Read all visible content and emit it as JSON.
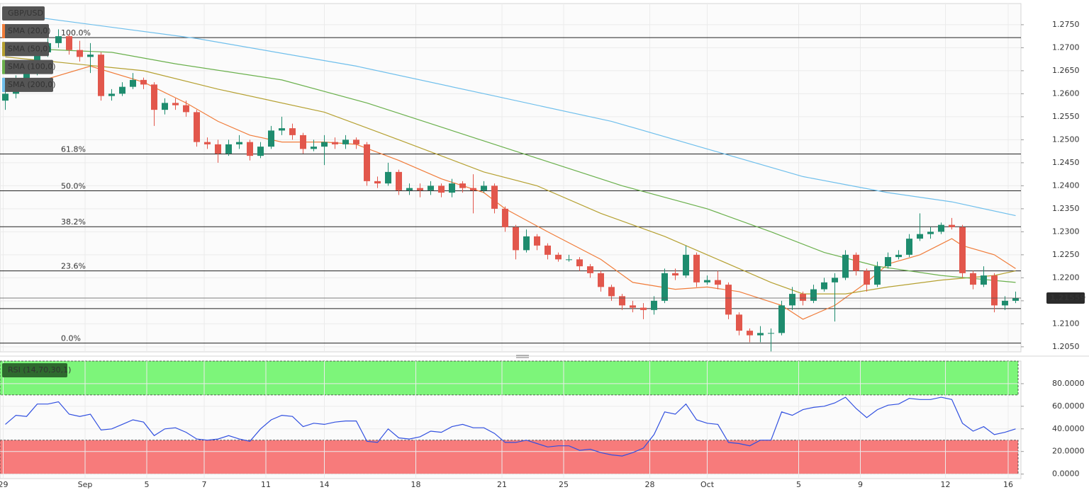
{
  "chart_data": [
    {
      "type": "candlestick",
      "title": "GBP/USD",
      "up_color": "#1e8c6e",
      "down_color": "#e2574c",
      "x": [
        0,
        1,
        2,
        3,
        4,
        5,
        6,
        7,
        8,
        9,
        10,
        11,
        12,
        13,
        14,
        15,
        16,
        17,
        18,
        19,
        20,
        21,
        22,
        23,
        24,
        25,
        26,
        27,
        28,
        29,
        30,
        31,
        32,
        33,
        34,
        35,
        36,
        37,
        38,
        39,
        40,
        41,
        42,
        43,
        44,
        45,
        46,
        47,
        48,
        49,
        50,
        51,
        52,
        53,
        54,
        55,
        56,
        57,
        58,
        59,
        60,
        61,
        62,
        63,
        64,
        65,
        66,
        67,
        68,
        69,
        70,
        71,
        72,
        73,
        74,
        75,
        76,
        77,
        78,
        79,
        80,
        81,
        82,
        83,
        84,
        85,
        86,
        87,
        88,
        89,
        90,
        91,
        92,
        93,
        94,
        95
      ],
      "open": [
        1.2585,
        1.26,
        1.2625,
        1.265,
        1.269,
        1.271,
        1.2725,
        1.2695,
        1.268,
        1.2685,
        1.2595,
        1.26,
        1.2615,
        1.263,
        1.262,
        1.2565,
        1.258,
        1.2575,
        1.256,
        1.2495,
        1.249,
        1.247,
        1.249,
        1.2495,
        1.2465,
        1.2485,
        1.252,
        1.2525,
        1.251,
        1.248,
        1.2485,
        1.2495,
        1.249,
        1.25,
        1.249,
        1.241,
        1.2405,
        1.243,
        1.239,
        1.2395,
        1.239,
        1.24,
        1.2385,
        1.2405,
        1.2395,
        1.239,
        1.24,
        1.235,
        1.231,
        1.226,
        1.229,
        1.227,
        1.225,
        1.224,
        1.224,
        1.2225,
        1.221,
        1.218,
        1.216,
        1.214,
        1.2135,
        1.213,
        1.215,
        1.221,
        1.2205,
        1.225,
        1.219,
        1.2195,
        1.2185,
        1.212,
        1.2085,
        1.2075,
        1.208,
        1.208,
        1.214,
        1.2165,
        1.215,
        1.2175,
        1.219,
        1.22,
        1.225,
        1.2215,
        1.2185,
        1.2225,
        1.2245,
        1.225,
        1.2285,
        1.2295,
        1.23,
        1.2315,
        1.231,
        1.221,
        1.2185,
        1.2205,
        1.214,
        1.215
      ],
      "high": [
        1.2615,
        1.264,
        1.2665,
        1.2705,
        1.272,
        1.274,
        1.273,
        1.2715,
        1.271,
        1.269,
        1.261,
        1.2625,
        1.2645,
        1.2635,
        1.2625,
        1.259,
        1.259,
        1.2585,
        1.2565,
        1.2505,
        1.25,
        1.25,
        1.251,
        1.25,
        1.2495,
        1.253,
        1.255,
        1.2535,
        1.2515,
        1.25,
        1.251,
        1.2505,
        1.251,
        1.2505,
        1.2495,
        1.242,
        1.245,
        1.2435,
        1.2405,
        1.2405,
        1.241,
        1.2405,
        1.2415,
        1.241,
        1.2425,
        1.241,
        1.2405,
        1.2355,
        1.2315,
        1.2305,
        1.2295,
        1.2275,
        1.2255,
        1.225,
        1.2245,
        1.223,
        1.2215,
        1.2185,
        1.2165,
        1.215,
        1.2145,
        1.216,
        1.222,
        1.222,
        1.227,
        1.2255,
        1.2205,
        1.2215,
        1.219,
        1.2125,
        1.209,
        1.2095,
        1.209,
        1.215,
        1.218,
        1.217,
        1.2185,
        1.22,
        1.221,
        1.226,
        1.2255,
        1.222,
        1.2235,
        1.2255,
        1.226,
        1.2295,
        1.234,
        1.231,
        1.232,
        1.233,
        1.2315,
        1.2215,
        1.2225,
        1.221,
        1.216,
        1.217
      ],
      "low": [
        1.2565,
        1.259,
        1.2615,
        1.264,
        1.268,
        1.27,
        1.2685,
        1.267,
        1.2645,
        1.2585,
        1.2585,
        1.2595,
        1.261,
        1.261,
        1.253,
        1.2555,
        1.2565,
        1.255,
        1.2485,
        1.248,
        1.245,
        1.2465,
        1.248,
        1.2455,
        1.246,
        1.248,
        1.251,
        1.25,
        1.247,
        1.2475,
        1.2445,
        1.248,
        1.248,
        1.248,
        1.24,
        1.2395,
        1.24,
        1.238,
        1.238,
        1.2375,
        1.238,
        1.2375,
        1.2375,
        1.2385,
        1.234,
        1.2385,
        1.234,
        1.23,
        1.224,
        1.2255,
        1.226,
        1.224,
        1.2235,
        1.2235,
        1.2215,
        1.22,
        1.217,
        1.215,
        1.213,
        1.2125,
        1.211,
        1.212,
        1.2145,
        1.2195,
        1.22,
        1.218,
        1.2185,
        1.2175,
        1.211,
        1.2075,
        1.206,
        1.206,
        1.204,
        1.2075,
        1.213,
        1.214,
        1.2145,
        1.217,
        1.2105,
        1.2195,
        1.2205,
        1.217,
        1.218,
        1.222,
        1.224,
        1.2245,
        1.228,
        1.2285,
        1.2295,
        1.2305,
        1.22,
        1.2175,
        1.218,
        1.2125,
        1.213,
        1.2145
      ],
      "close": [
        1.26,
        1.2625,
        1.265,
        1.269,
        1.271,
        1.2725,
        1.2695,
        1.268,
        1.2685,
        1.2595,
        1.26,
        1.2615,
        1.263,
        1.262,
        1.2565,
        1.258,
        1.2575,
        1.256,
        1.2495,
        1.249,
        1.247,
        1.249,
        1.2495,
        1.2465,
        1.2485,
        1.252,
        1.2525,
        1.251,
        1.248,
        1.2485,
        1.2495,
        1.249,
        1.25,
        1.249,
        1.241,
        1.2405,
        1.243,
        1.239,
        1.2395,
        1.239,
        1.24,
        1.2385,
        1.2405,
        1.2395,
        1.239,
        1.24,
        1.235,
        1.231,
        1.226,
        1.229,
        1.227,
        1.225,
        1.224,
        1.224,
        1.2225,
        1.221,
        1.218,
        1.216,
        1.214,
        1.2135,
        1.213,
        1.215,
        1.221,
        1.2205,
        1.225,
        1.219,
        1.2195,
        1.2185,
        1.212,
        1.2085,
        1.2075,
        1.208,
        1.208,
        1.214,
        1.2165,
        1.215,
        1.2175,
        1.219,
        1.22,
        1.225,
        1.2215,
        1.2185,
        1.2225,
        1.2245,
        1.225,
        1.2285,
        1.2295,
        1.23,
        1.2315,
        1.231,
        1.221,
        1.2185,
        1.2205,
        1.214,
        1.215,
        1.2156
      ],
      "series": [
        {
          "name": "SMA (20,0)",
          "color": "#f07c3a",
          "x": [
            0,
            8,
            13,
            17,
            20,
            23,
            26,
            30,
            33,
            37,
            41,
            45,
            47,
            51,
            56,
            59,
            63,
            66,
            69,
            73,
            75,
            78,
            81,
            83,
            86,
            89,
            90,
            93,
            95
          ],
          "values": [
            1.2605,
            1.266,
            1.2625,
            1.258,
            1.254,
            1.251,
            1.2495,
            1.2495,
            1.249,
            1.2455,
            1.2415,
            1.2385,
            1.235,
            1.23,
            1.224,
            1.219,
            1.2175,
            1.218,
            1.217,
            1.214,
            1.211,
            1.214,
            1.219,
            1.223,
            1.225,
            1.2285,
            1.227,
            1.225,
            1.222
          ]
        },
        {
          "name": "SMA (50,0)",
          "color": "#b5a030",
          "x": [
            0,
            13,
            20,
            30,
            37,
            45,
            50,
            56,
            62,
            66,
            72,
            75,
            79,
            83,
            88,
            93,
            95
          ],
          "values": [
            1.268,
            1.265,
            1.261,
            1.256,
            1.25,
            1.243,
            1.24,
            1.234,
            1.229,
            1.225,
            1.219,
            1.2165,
            1.2165,
            1.218,
            1.2195,
            1.2205,
            1.2215
          ]
        },
        {
          "name": "SMA (100,0)",
          "color": "#6ab04c",
          "x": [
            0,
            10,
            16,
            26,
            34,
            42,
            50,
            58,
            66,
            72,
            77,
            82,
            88,
            95
          ],
          "values": [
            1.27,
            1.269,
            1.2665,
            1.263,
            1.258,
            1.252,
            1.246,
            1.24,
            1.235,
            1.23,
            1.2255,
            1.2225,
            1.2205,
            1.219
          ]
        },
        {
          "name": "SMA (200,0)",
          "color": "#6fbfec",
          "x": [
            0,
            18,
            33,
            46,
            57,
            66,
            75,
            83,
            89,
            95
          ],
          "values": [
            1.2775,
            1.272,
            1.266,
            1.2595,
            1.254,
            1.248,
            1.242,
            1.2385,
            1.2365,
            1.2335
          ]
        }
      ],
      "levels": [
        {
          "value": 1.2722,
          "label": "100.0%"
        },
        {
          "value": 1.2469,
          "label": "61.8%"
        },
        {
          "value": 1.2389,
          "label": "50.0%"
        },
        {
          "value": 1.2311,
          "label": "38.2%"
        },
        {
          "value": 1.2215,
          "label": "23.6%"
        },
        {
          "value": 1.2058,
          "label": "0.0%"
        }
      ],
      "horizontal_lines": [
        1.2133
      ],
      "last_price": 1.21559,
      "xlim": [
        -0.5,
        95.5
      ],
      "ylim": [
        1.2039,
        1.2796
      ],
      "yticks": [
        {
          "value": 1.205,
          "label": "1.2050"
        },
        {
          "value": 1.21,
          "label": "1.2100"
        },
        {
          "value": 1.215,
          "label": "1.2150"
        },
        {
          "value": 1.22,
          "label": "1.2200"
        },
        {
          "value": 1.225,
          "label": "1.2250"
        },
        {
          "value": 1.23,
          "label": "1.2300"
        },
        {
          "value": 1.235,
          "label": "1.2350"
        },
        {
          "value": 1.24,
          "label": "1.2400"
        },
        {
          "value": 1.245,
          "label": "1.2450"
        },
        {
          "value": 1.25,
          "label": "1.2500"
        },
        {
          "value": 1.255,
          "label": "1.2550"
        },
        {
          "value": 1.26,
          "label": "1.2600"
        },
        {
          "value": 1.265,
          "label": "1.2650"
        },
        {
          "value": 1.27,
          "label": "1.2700"
        },
        {
          "value": 1.275,
          "label": "1.2750"
        }
      ],
      "grid": true
    },
    {
      "type": "line",
      "title": "RSI (14,70,30,1)",
      "series": [
        {
          "color": "#3150e0",
          "x": [
            0,
            1,
            2,
            3,
            4,
            5,
            6,
            7,
            8,
            9,
            10,
            11,
            12,
            13,
            14,
            15,
            16,
            17,
            18,
            19,
            20,
            21,
            22,
            23,
            24,
            25,
            26,
            27,
            28,
            29,
            30,
            31,
            32,
            33,
            34,
            35,
            36,
            37,
            38,
            39,
            40,
            41,
            42,
            43,
            44,
            45,
            46,
            47,
            48,
            49,
            50,
            51,
            52,
            53,
            54,
            55,
            56,
            57,
            58,
            59,
            60,
            61,
            62,
            63,
            64,
            65,
            66,
            67,
            68,
            69,
            70,
            71,
            72,
            73,
            74,
            75,
            76,
            77,
            78,
            79,
            80,
            81,
            82,
            83,
            84,
            85,
            86,
            87,
            88,
            89,
            90,
            91,
            92,
            93,
            94,
            95
          ],
          "values": [
            44,
            52,
            51,
            62,
            62,
            64,
            53,
            51,
            53,
            39,
            40,
            44,
            48,
            46,
            34,
            40,
            41,
            37,
            31,
            30,
            31,
            34,
            31,
            29,
            40,
            48,
            52,
            51,
            42,
            45,
            44,
            46,
            47,
            47,
            29,
            28,
            40,
            32,
            31,
            33,
            38,
            37,
            42,
            44,
            41,
            41,
            36,
            28,
            28,
            30,
            27,
            24,
            25,
            25,
            21,
            22,
            19,
            17,
            16,
            19,
            23,
            35,
            55,
            53,
            62,
            48,
            45,
            44,
            28,
            27,
            25,
            30,
            30,
            55,
            52,
            57,
            59,
            60,
            63,
            68,
            58,
            50,
            57,
            61,
            62,
            67,
            66,
            66,
            68,
            66,
            45,
            38,
            42,
            35,
            37,
            40
          ]
        }
      ],
      "bands": [
        {
          "range": [
            70,
            100
          ],
          "color": "#7df57a"
        },
        {
          "range": [
            0,
            30
          ],
          "color": "#f77b7b"
        }
      ],
      "xlim": [
        -0.5,
        95.5
      ],
      "ylim": [
        -4,
        100
      ],
      "yticks": [
        {
          "value": 0,
          "label": "0.0000"
        },
        {
          "value": 20,
          "label": "20.0000"
        },
        {
          "value": 40,
          "label": "40.0000"
        },
        {
          "value": 60,
          "label": "60.0000"
        },
        {
          "value": 80,
          "label": "80.0000"
        }
      ],
      "xticks": [
        {
          "value": -0.2,
          "label": "29"
        },
        {
          "value": 7.5,
          "label": "Sep"
        },
        {
          "value": 13.3,
          "label": "5"
        },
        {
          "value": 18.7,
          "label": "7"
        },
        {
          "value": 24.5,
          "label": "11"
        },
        {
          "value": 30,
          "label": "14"
        },
        {
          "value": 38.6,
          "label": "18"
        },
        {
          "value": 46.7,
          "label": "21"
        },
        {
          "value": 52.5,
          "label": "25"
        },
        {
          "value": 60.6,
          "label": "28"
        },
        {
          "value": 66,
          "label": "Oct"
        },
        {
          "value": 74.6,
          "label": "5"
        },
        {
          "value": 80.4,
          "label": "9"
        },
        {
          "value": 88.4,
          "label": "12"
        },
        {
          "value": 94.3,
          "label": "16"
        }
      ]
    }
  ]
}
